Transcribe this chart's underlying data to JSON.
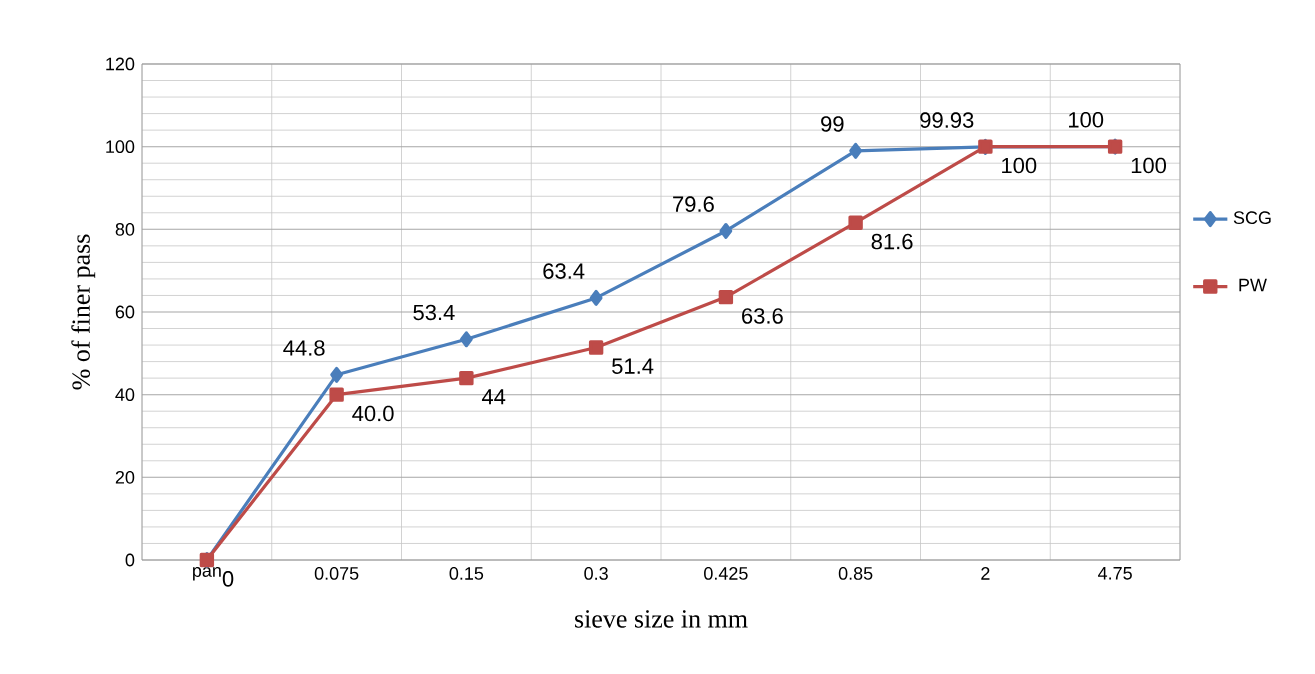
{
  "chart_data": {
    "type": "line",
    "xlabel": "sieve size in mm",
    "ylabel": "% of finer pass",
    "categories": [
      "pan",
      "0.075",
      "0.15",
      "0.3",
      "0.425",
      "0.85",
      "2",
      "4.75"
    ],
    "series": [
      {
        "name": "SCG",
        "color": "#4a7ebb",
        "marker": "diamond",
        "values": [
          0,
          44.8,
          53.4,
          63.4,
          79.6,
          99,
          99.93,
          100
        ],
        "value_labels": [
          null,
          "44.8",
          "53.4",
          "63.4",
          "79.6",
          "99",
          "99.93",
          "100"
        ]
      },
      {
        "name": "PW",
        "color": "#be4b48",
        "marker": "square",
        "values": [
          0,
          40.0,
          44,
          51.4,
          63.6,
          81.6,
          100,
          100
        ],
        "value_labels": [
          "0",
          "40.0",
          "44",
          "51.4",
          "63.6",
          "81.6",
          "100",
          "100"
        ]
      }
    ],
    "ylim": [
      0,
      120
    ],
    "yticks": [
      0,
      20,
      40,
      60,
      80,
      100,
      120
    ],
    "grid": true,
    "legend": "right"
  }
}
